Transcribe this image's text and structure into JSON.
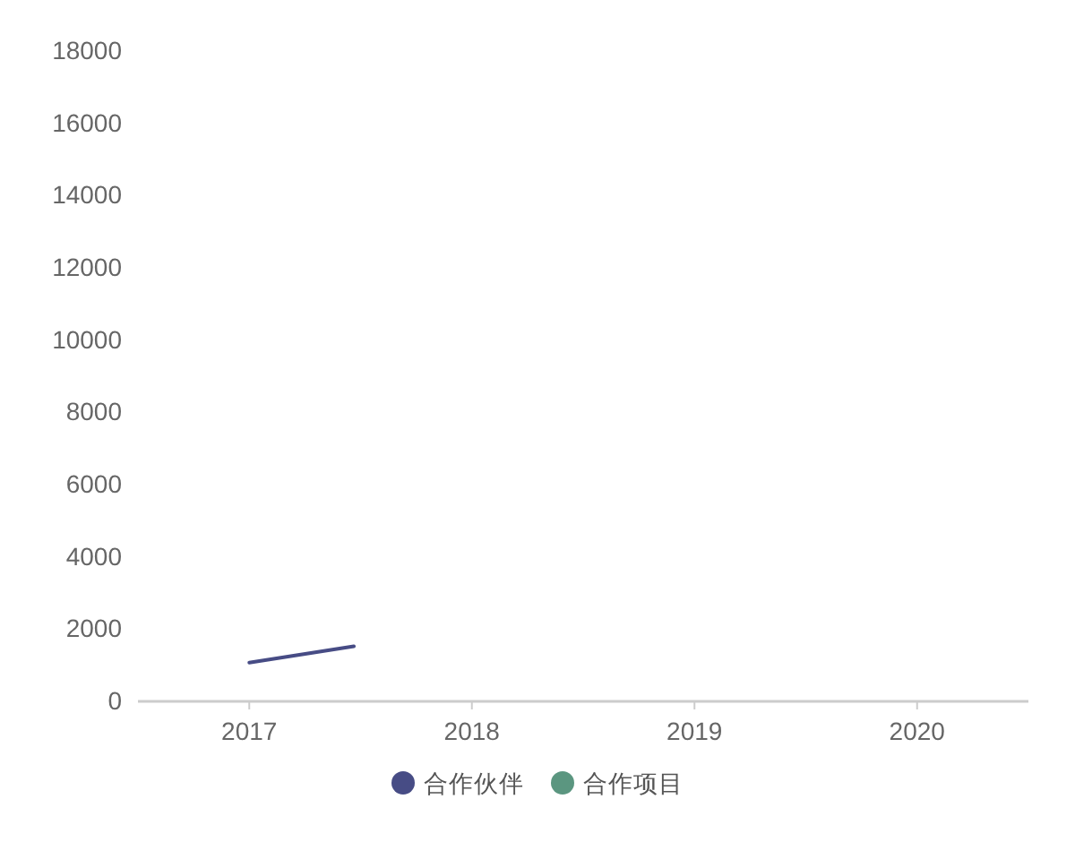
{
  "chart_data": {
    "type": "line",
    "x": [
      2017,
      2017.47
    ],
    "xlim": [
      2016.5,
      2020.5
    ],
    "xticks": [
      2017,
      2018,
      2019,
      2020
    ],
    "ylim": [
      0,
      18000
    ],
    "yticks": [
      0,
      2000,
      4000,
      6000,
      8000,
      10000,
      12000,
      14000,
      16000,
      18000
    ],
    "series": [
      {
        "name": "合作伙伴",
        "color": "#474c85",
        "values": [
          1050,
          1500
        ]
      },
      {
        "name": "合作项目",
        "color": "#5b9680",
        "values": [
          null,
          null
        ]
      }
    ],
    "legend": "bottom"
  }
}
